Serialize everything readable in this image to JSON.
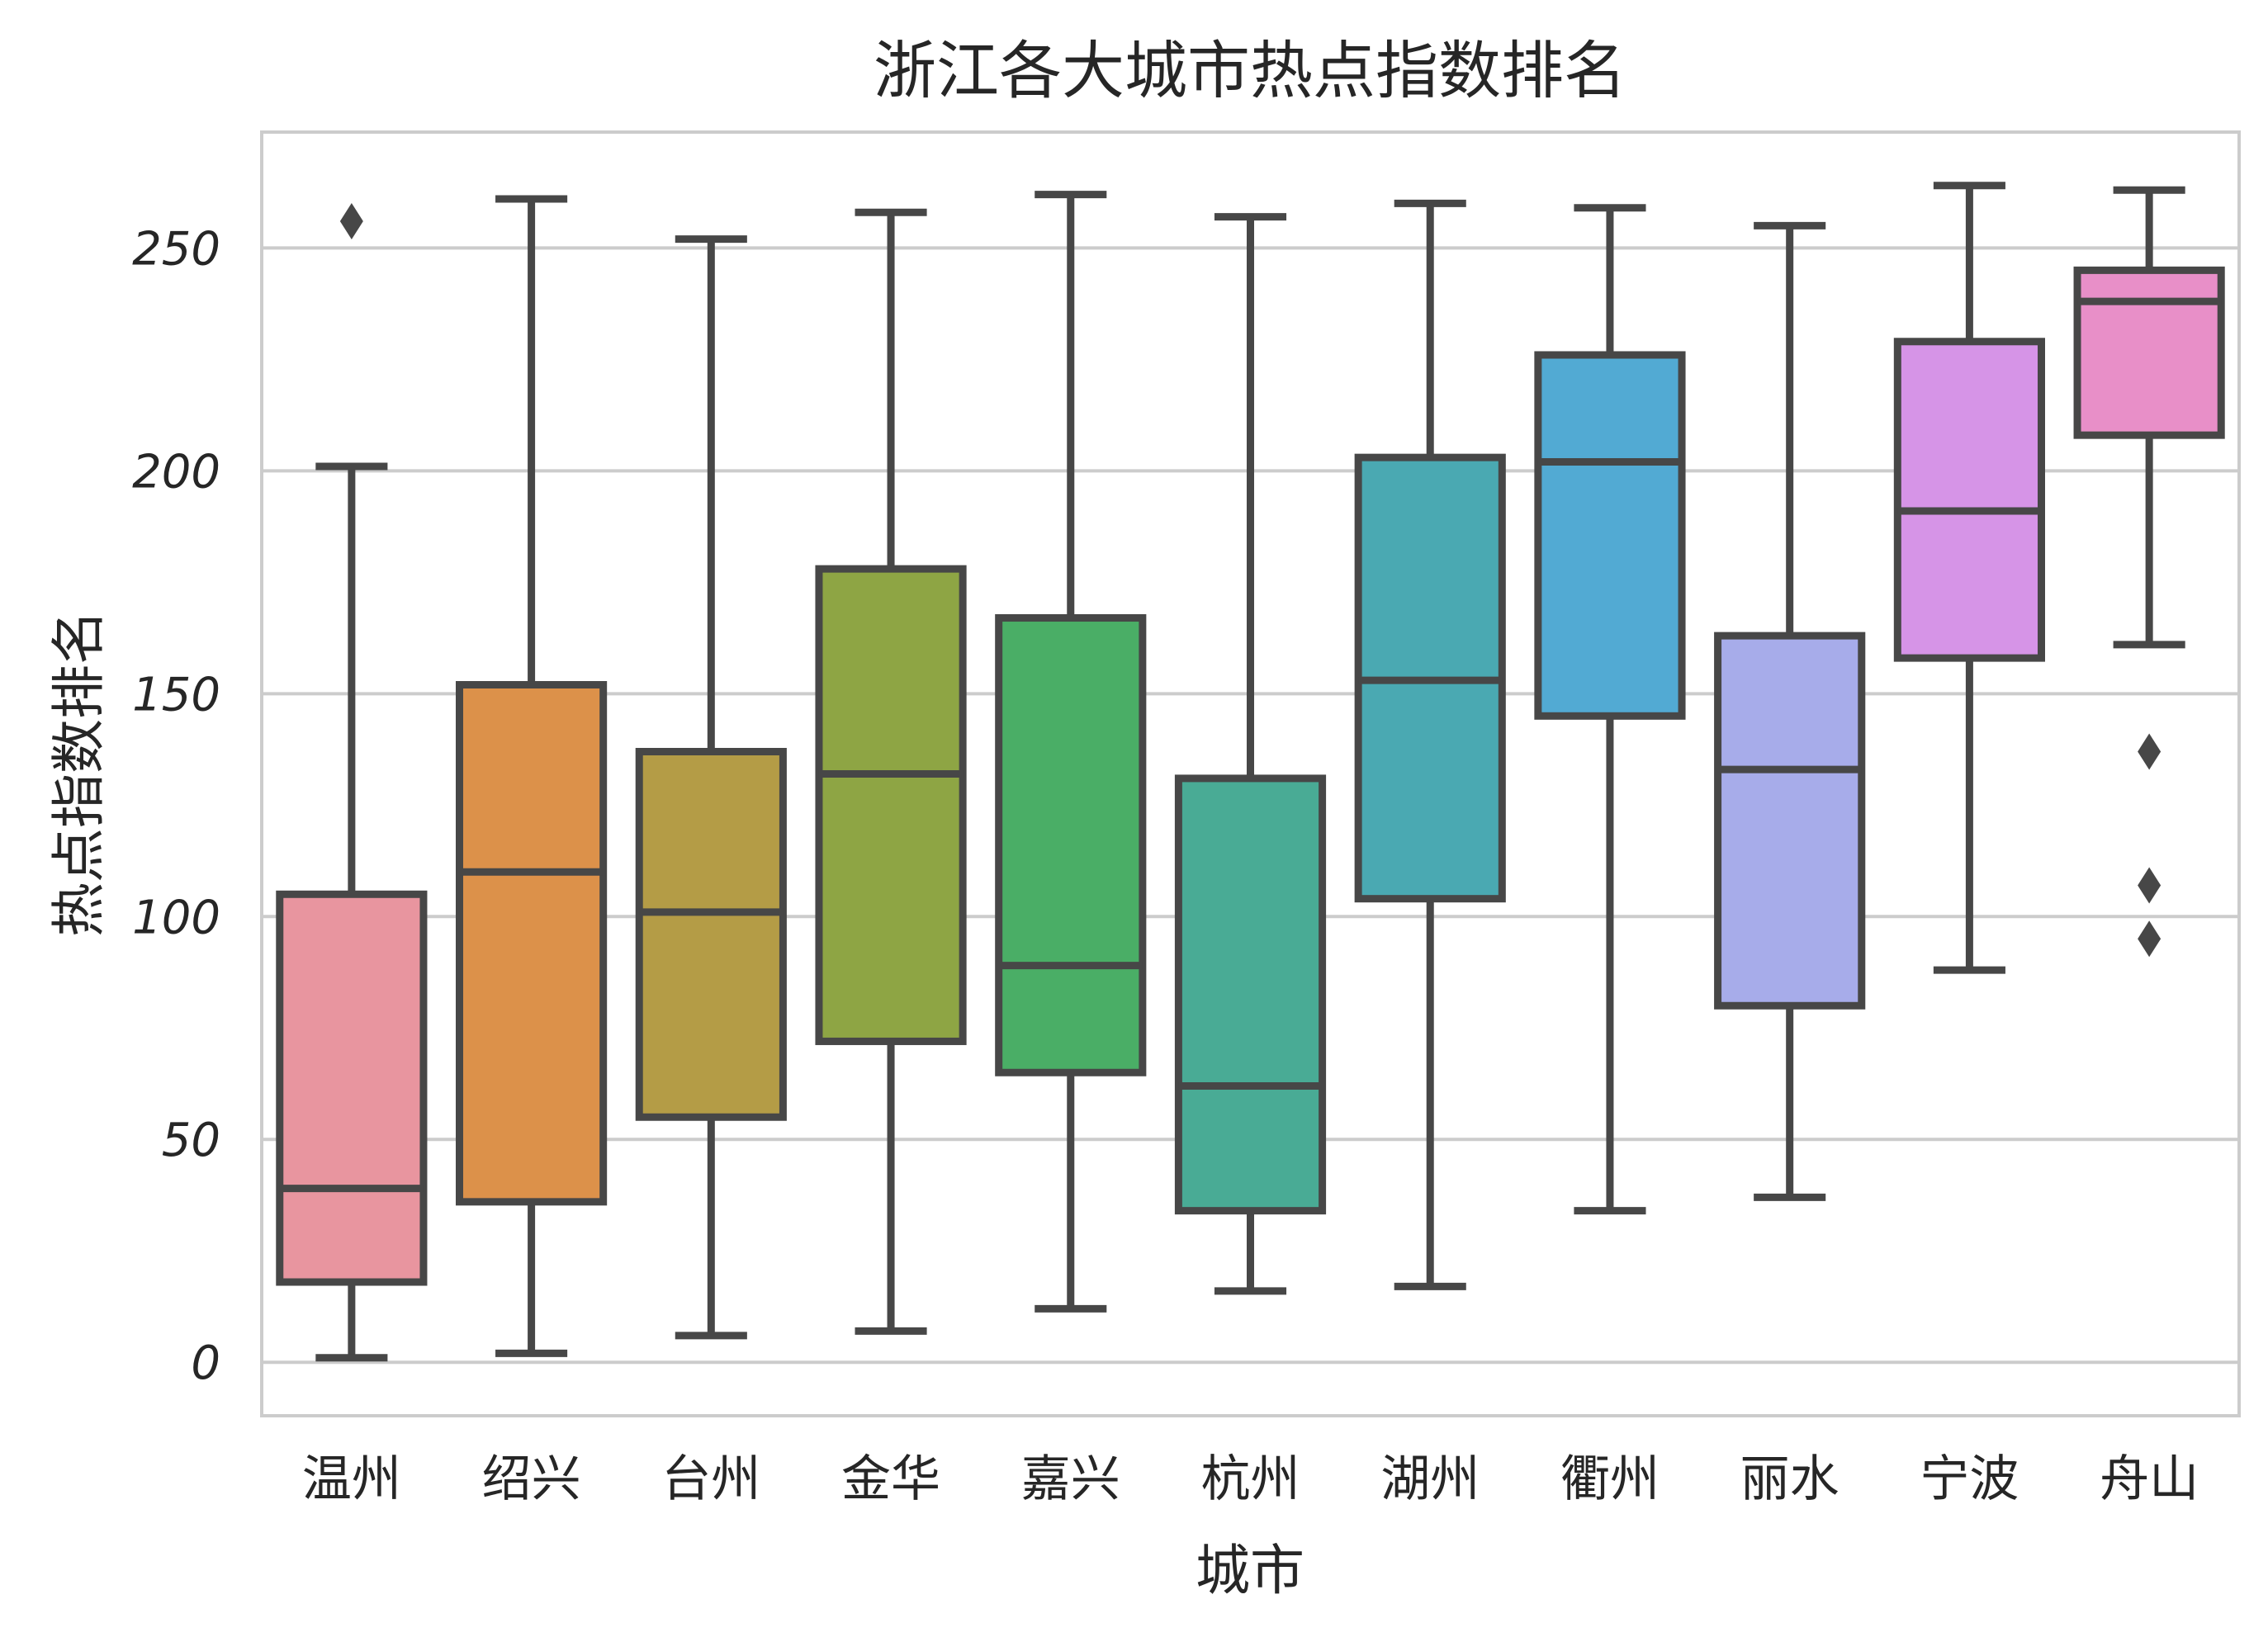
{
  "chart_data": {
    "type": "box",
    "title": "浙江各大城市热点指数排名",
    "xlabel": "城市",
    "ylabel": "热点指数排名",
    "ylim": [
      -12,
      276
    ],
    "yticks": [
      0,
      50,
      100,
      150,
      200,
      250
    ],
    "grid": "horizontal",
    "categories": [
      "温州",
      "绍兴",
      "台州",
      "金华",
      "嘉兴",
      "杭州",
      "湖州",
      "衢州",
      "丽水",
      "宁波",
      "舟山"
    ],
    "boxes": [
      {
        "whisker_low": 1,
        "q1": 18,
        "median": 39,
        "q3": 105,
        "whisker_high": 201,
        "outliers": [
          256
        ]
      },
      {
        "whisker_low": 2,
        "q1": 36,
        "median": 110,
        "q3": 152,
        "whisker_high": 261,
        "outliers": []
      },
      {
        "whisker_low": 6,
        "q1": 55,
        "median": 101,
        "q3": 137,
        "whisker_high": 252,
        "outliers": []
      },
      {
        "whisker_low": 7,
        "q1": 72,
        "median": 132,
        "q3": 178,
        "whisker_high": 258,
        "outliers": []
      },
      {
        "whisker_low": 12,
        "q1": 65,
        "median": 89,
        "q3": 167,
        "whisker_high": 262,
        "outliers": []
      },
      {
        "whisker_low": 16,
        "q1": 34,
        "median": 62,
        "q3": 131,
        "whisker_high": 257,
        "outliers": []
      },
      {
        "whisker_low": 17,
        "q1": 104,
        "median": 153,
        "q3": 203,
        "whisker_high": 260,
        "outliers": []
      },
      {
        "whisker_low": 34,
        "q1": 145,
        "median": 202,
        "q3": 226,
        "whisker_high": 259,
        "outliers": []
      },
      {
        "whisker_low": 37,
        "q1": 80,
        "median": 133,
        "q3": 163,
        "whisker_high": 255,
        "outliers": []
      },
      {
        "whisker_low": 88,
        "q1": 158,
        "median": 191,
        "q3": 229,
        "whisker_high": 264,
        "outliers": []
      },
      {
        "whisker_low": 161,
        "q1": 208,
        "median": 238,
        "q3": 245,
        "whisker_high": 263,
        "outliers": [
          137,
          107,
          95
        ]
      }
    ],
    "colors": [
      "#e8959f",
      "#dc914a",
      "#b49c46",
      "#8ea544",
      "#4aae66",
      "#49ab95",
      "#4aa9b2",
      "#52aad3",
      "#a7acea",
      "#d694e7",
      "#e88fc8"
    ],
    "line_color": "#474747",
    "grid_color": "#cccccc"
  }
}
